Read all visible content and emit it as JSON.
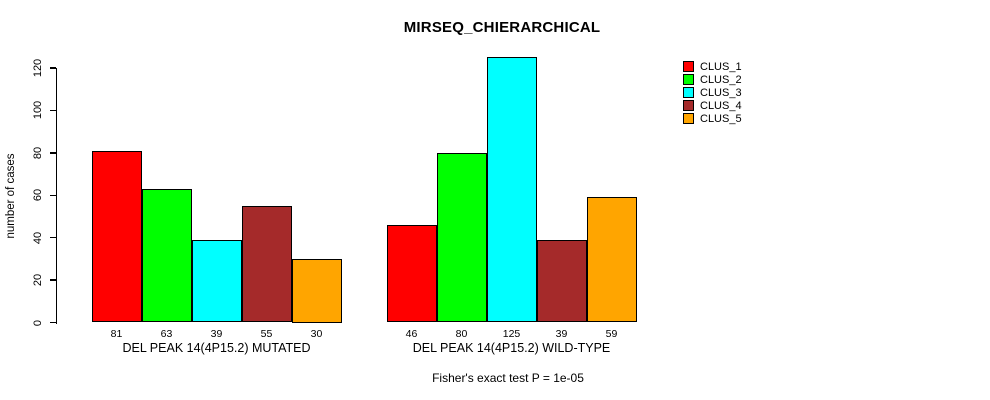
{
  "chart_data": {
    "type": "bar",
    "title": "MIRSEQ_CHIERARCHICAL",
    "ylabel": "number of cases",
    "xlabel": "",
    "ylim": [
      0,
      120
    ],
    "yticks": [
      0,
      20,
      40,
      60,
      80,
      100,
      120
    ],
    "grid": false,
    "legend_position": "top-right",
    "background": "#FFFFFF",
    "bar_border_color": "#000000",
    "groups": [
      {
        "label": "DEL PEAK 14(4P15.2) MUTATED",
        "values": [
          81,
          63,
          39,
          55,
          30
        ]
      },
      {
        "label": "DEL PEAK 14(4P15.2) WILD-TYPE",
        "values": [
          46,
          80,
          125,
          39,
          59
        ]
      }
    ],
    "series": [
      {
        "name": "CLUS_1",
        "color": "#FF0000",
        "values": [
          81,
          46
        ]
      },
      {
        "name": "CLUS_2",
        "color": "#00FF00",
        "values": [
          63,
          80
        ]
      },
      {
        "name": "CLUS_3",
        "color": "#00FFFF",
        "values": [
          39,
          125
        ]
      },
      {
        "name": "CLUS_4",
        "color": "#A52A2A",
        "values": [
          55,
          39
        ]
      },
      {
        "name": "CLUS_5",
        "color": "#FFA500",
        "values": [
          30,
          59
        ]
      }
    ],
    "bar_value_labels_shown": true,
    "annotation": "Fisher's exact test P = 1e-05"
  }
}
